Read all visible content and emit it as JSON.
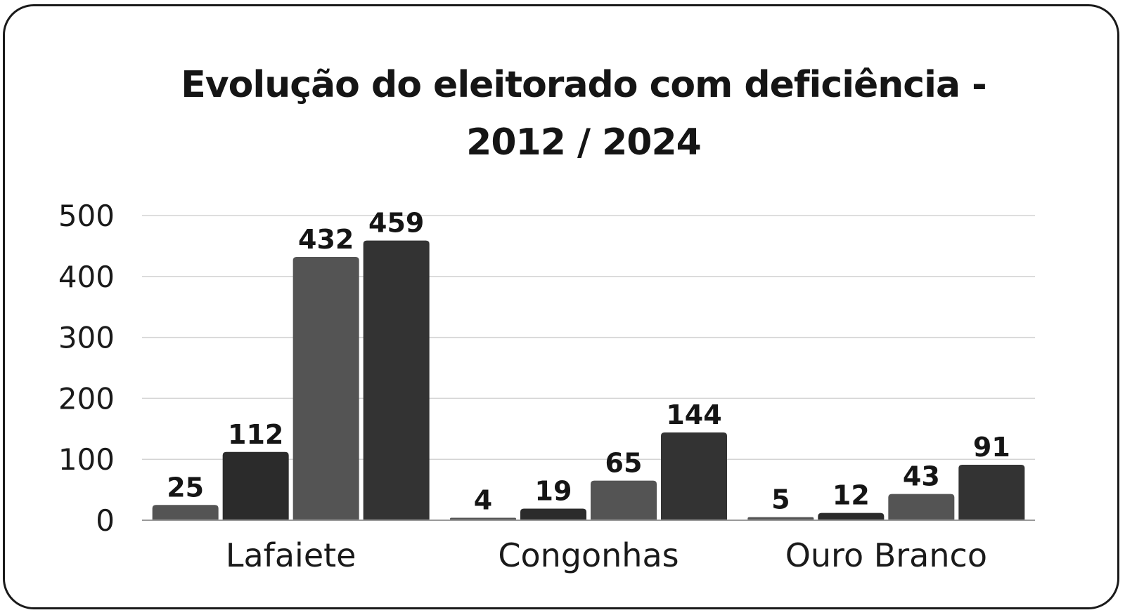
{
  "chart_data": {
    "type": "bar",
    "title": "Evolução do eleitorado com deficiência - 2012 / 2024",
    "title_lines": [
      "Evolução do eleitorado com deficiência -",
      "2012 / 2024"
    ],
    "categories": [
      "Lafaiete",
      "Congonhas",
      "Ouro Branco"
    ],
    "series": [
      {
        "values": [
          25,
          4,
          5
        ],
        "color": "#545454"
      },
      {
        "values": [
          112,
          19,
          12
        ],
        "color": "#2b2b2b"
      },
      {
        "values": [
          432,
          65,
          43
        ],
        "color": "#545454"
      },
      {
        "values": [
          459,
          144,
          91
        ],
        "color": "#333333"
      }
    ],
    "yticks": [
      "0",
      "100",
      "200",
      "300",
      "400",
      "500"
    ],
    "ylim": [
      0,
      500
    ],
    "grid": true,
    "xlabel": "",
    "ylabel": ""
  }
}
